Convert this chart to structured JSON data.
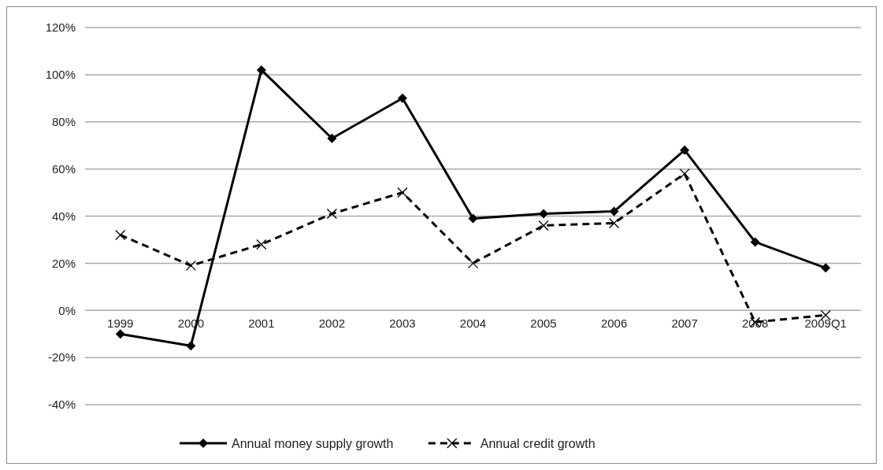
{
  "chart_data": {
    "type": "line",
    "categories": [
      "1999",
      "2000",
      "2001",
      "2002",
      "2003",
      "2004",
      "2005",
      "2006",
      "2007",
      "2008",
      "2009Q1"
    ],
    "series": [
      {
        "name": "Annual money supply growth",
        "color": "#000000",
        "values": [
          -10,
          -15,
          102,
          73,
          90,
          39,
          41,
          42,
          68,
          29,
          18
        ],
        "marker": "diamond",
        "line_style": "solid"
      },
      {
        "name": "Annual credit growth",
        "color": "#000000",
        "values": [
          32,
          19,
          28,
          41,
          50,
          20,
          36,
          37,
          58,
          -5,
          -2
        ],
        "marker": "cross",
        "line_style": "dashed"
      }
    ],
    "ylim": [
      -40,
      120
    ],
    "yticks": [
      {
        "value": -40,
        "label": "-40%"
      },
      {
        "value": -20,
        "label": "-20%"
      },
      {
        "value": 0,
        "label": "0%"
      },
      {
        "value": 20,
        "label": "20%"
      },
      {
        "value": 40,
        "label": "40%"
      },
      {
        "value": 60,
        "label": "60%"
      },
      {
        "value": 80,
        "label": "80%"
      },
      {
        "value": 100,
        "label": "100%"
      },
      {
        "value": 120,
        "label": "120%"
      }
    ],
    "grid": "y",
    "legend": "bottom"
  }
}
